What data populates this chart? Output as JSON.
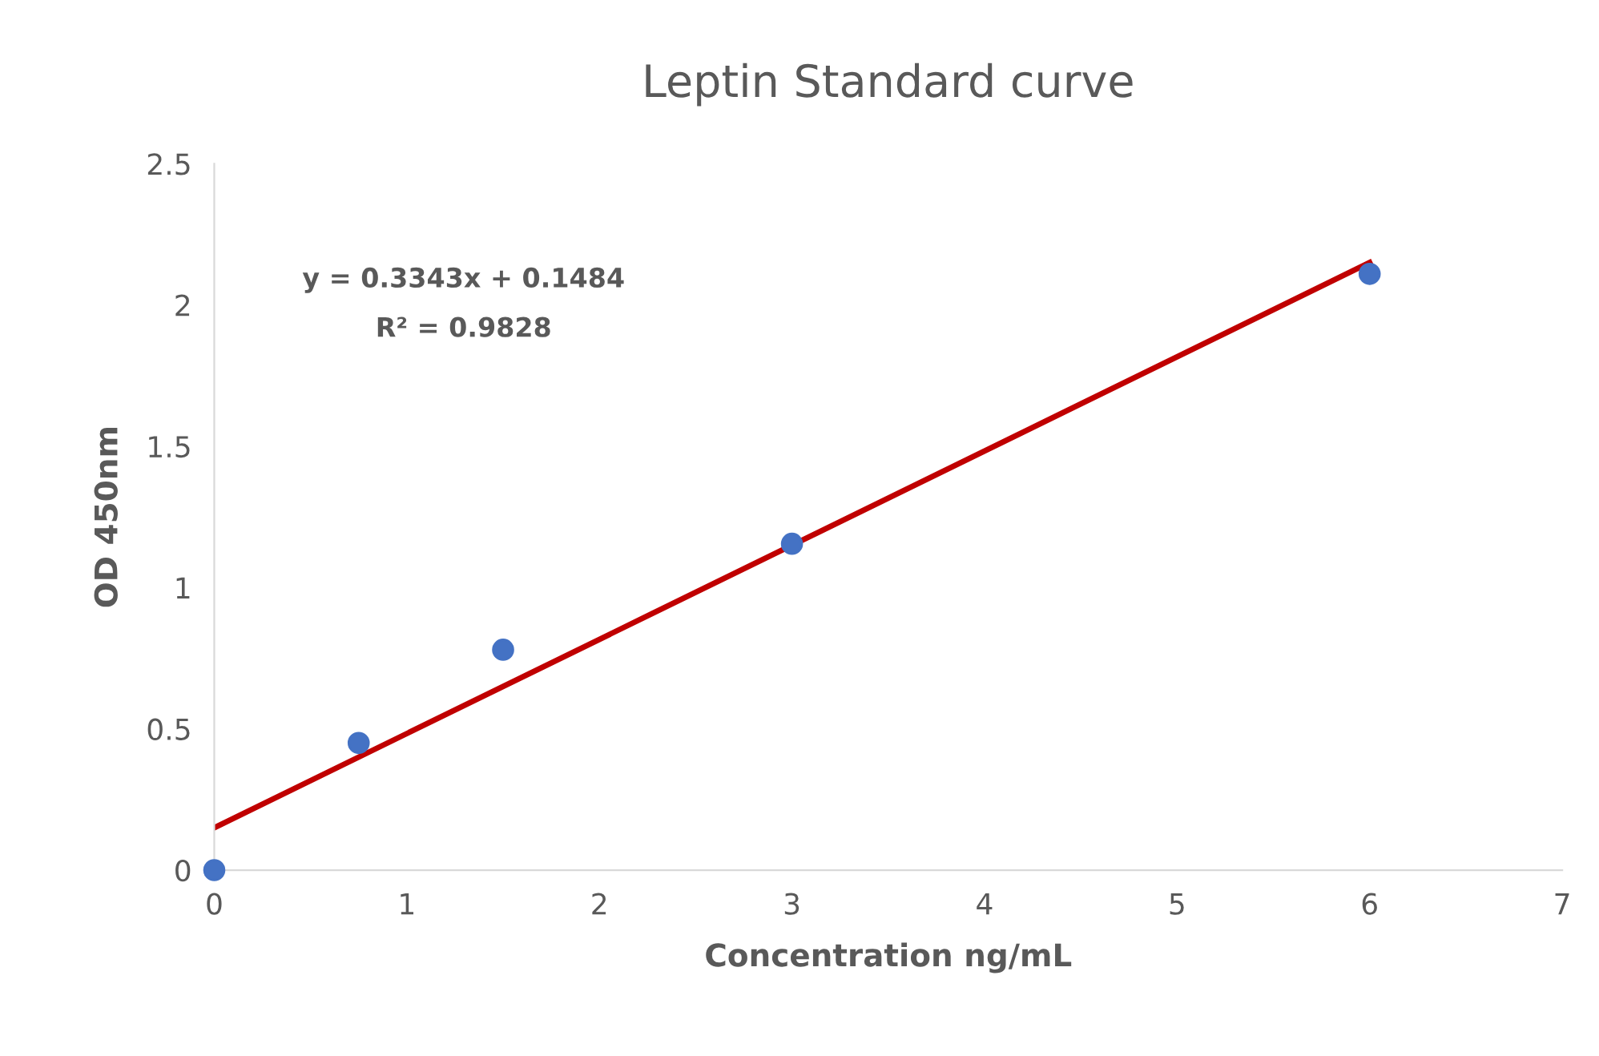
{
  "chart_data": {
    "type": "scatter",
    "title": "Leptin Standard curve",
    "xlabel": "Concentration ng/mL",
    "ylabel": "OD 450nm",
    "x": [
      0,
      0.75,
      1.5,
      3,
      6
    ],
    "series": [
      {
        "color": "#4472c4",
        "values": [
          0,
          0.45,
          0.78,
          1.155,
          2.11
        ],
        "marker": "circle"
      },
      {
        "type": "line",
        "color": "#c00000",
        "x": [
          0,
          6
        ],
        "values": [
          0.15,
          2.15
        ],
        "line_style": "solid",
        "marker": "none"
      }
    ],
    "annotations": [
      "y = 0.3343x + 0.1484",
      "R² = 0.9828"
    ],
    "xlim": [
      0,
      7
    ],
    "xticks": [
      0,
      1,
      2,
      3,
      4,
      5,
      6,
      7
    ],
    "ylim": [
      0,
      2.5
    ],
    "yticks": [
      0,
      0.5,
      1,
      1.5,
      2,
      2.5
    ],
    "grid": false,
    "legend": false
  }
}
